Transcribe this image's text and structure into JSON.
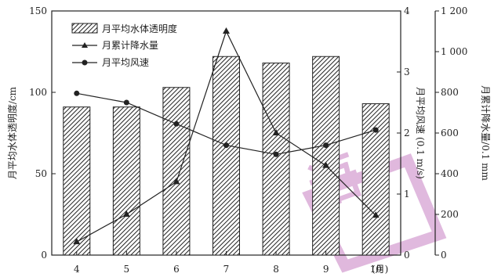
{
  "chart_data": {
    "type": "bar+line",
    "categories": [
      "4",
      "5",
      "6",
      "7",
      "8",
      "9",
      "10"
    ],
    "x_unit_label": "(月)",
    "series": [
      {
        "name": "月平均水体透明度",
        "kind": "bar",
        "axis": "left",
        "values": [
          91,
          91,
          103,
          122,
          118,
          122,
          93
        ]
      },
      {
        "name": "月累计降水量",
        "kind": "line",
        "marker": "triangle",
        "axis": "right_outer",
        "values": [
          65,
          200,
          360,
          1100,
          600,
          440,
          195
        ]
      },
      {
        "name": "月平均风速",
        "kind": "line",
        "marker": "circle",
        "axis": "right_inner",
        "values": [
          2.65,
          2.5,
          2.15,
          1.8,
          1.65,
          1.8,
          2.05
        ]
      }
    ],
    "left_axis": {
      "label": "月平均水体透明度/cm",
      "ylim": [
        0,
        150
      ],
      "ticks": [
        "0",
        "50",
        "100",
        "150"
      ]
    },
    "right_inner_axis": {
      "label": "月平均风速 (0.1 m/s)",
      "ylim": [
        0,
        4
      ],
      "ticks": [
        "0",
        "1",
        "2",
        "3",
        "4"
      ]
    },
    "right_outer_axis": {
      "label": "月累计降水量/0.1 mm",
      "ylim": [
        0,
        1200
      ],
      "ticks": [
        "0",
        "200",
        "400",
        "600",
        "800",
        "1 000",
        "1 200"
      ]
    },
    "legend_position": "top-left",
    "grid": false
  },
  "watermark": {
    "text": "语",
    "color": "#c77fc2"
  }
}
